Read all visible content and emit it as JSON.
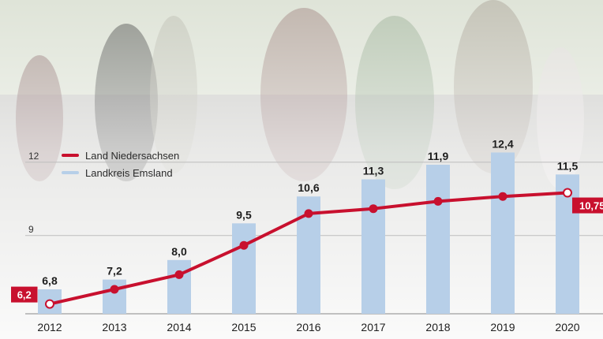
{
  "chart_data": {
    "type": "bar",
    "categories": [
      "2012",
      "2013",
      "2014",
      "2015",
      "2016",
      "2017",
      "2018",
      "2019",
      "2020"
    ],
    "series": [
      {
        "name": "Landkreis Emsland",
        "type": "bar",
        "values": [
          6.8,
          7.2,
          8.0,
          9.5,
          10.6,
          11.3,
          11.9,
          12.4,
          11.5
        ],
        "labels": [
          "6,8",
          "7,2",
          "8,0",
          "9,5",
          "10,6",
          "11,3",
          "11,9",
          "12,4",
          "11,5"
        ]
      },
      {
        "name": "Land Niedersachsen",
        "type": "line",
        "values": [
          6.2,
          6.8,
          7.4,
          8.6,
          9.9,
          10.1,
          10.4,
          10.6,
          10.75
        ],
        "labels": [
          "6,2",
          "",
          "",
          "",
          "",
          "",
          "",
          "",
          "10,75"
        ]
      }
    ],
    "yticks": [
      9,
      12
    ],
    "ytick_labels": [
      "9",
      "12"
    ],
    "ylim": [
      5.8,
      14
    ],
    "grid": true,
    "legend": "top-left"
  },
  "colors": {
    "bar": "#b7cfe8",
    "line": "#c8102e",
    "grid": "#bdbdbd",
    "axis": "#888888"
  }
}
